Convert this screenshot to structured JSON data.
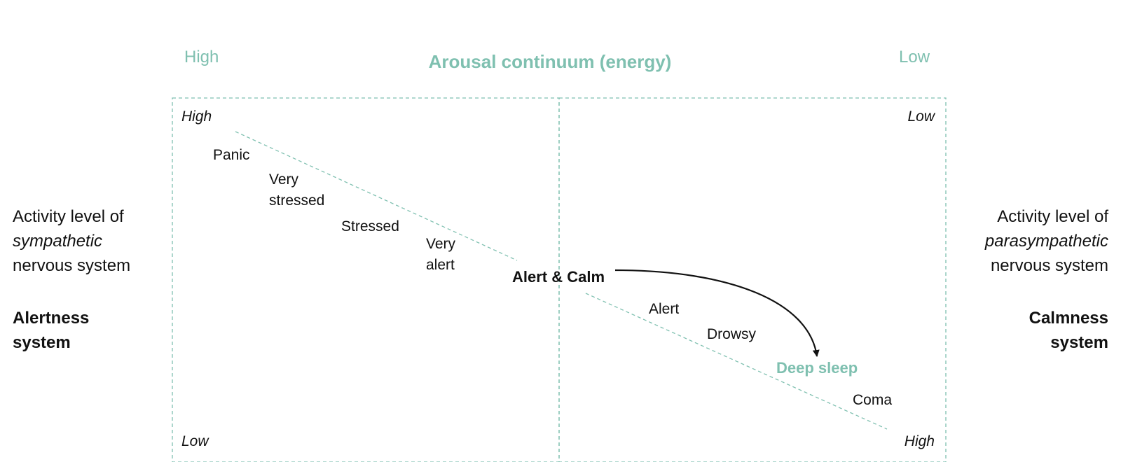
{
  "top_axis": {
    "left_end": "High",
    "title": "Arousal continuum (energy)",
    "right_end": "Low"
  },
  "left_panel": {
    "corner_top": "High",
    "corner_bottom": "Low",
    "states": [
      {
        "line1": "Panic",
        "line2": ""
      },
      {
        "line1": "Very",
        "line2": "stressed"
      },
      {
        "line1": "Stressed",
        "line2": ""
      },
      {
        "line1": "Very",
        "line2": "alert"
      }
    ]
  },
  "center_state": "Alert & Calm",
  "right_panel": {
    "corner_top": "Low",
    "corner_bottom": "High",
    "states": [
      "Alert",
      "Drowsy",
      "Deep sleep",
      "Coma"
    ]
  },
  "left_side": {
    "line1": "Activity level of",
    "line2": "sympathetic",
    "line3": "nervous system",
    "system_line1": "Alertness",
    "system_line2": "system"
  },
  "right_side": {
    "line1": "Activity level of",
    "line2": "parasympathetic",
    "line3": "nervous system",
    "system_line1": "Calmness",
    "system_line2": "system"
  },
  "colors": {
    "accent": "#7fc0b0",
    "text": "#111111",
    "arrow": "#111111"
  }
}
